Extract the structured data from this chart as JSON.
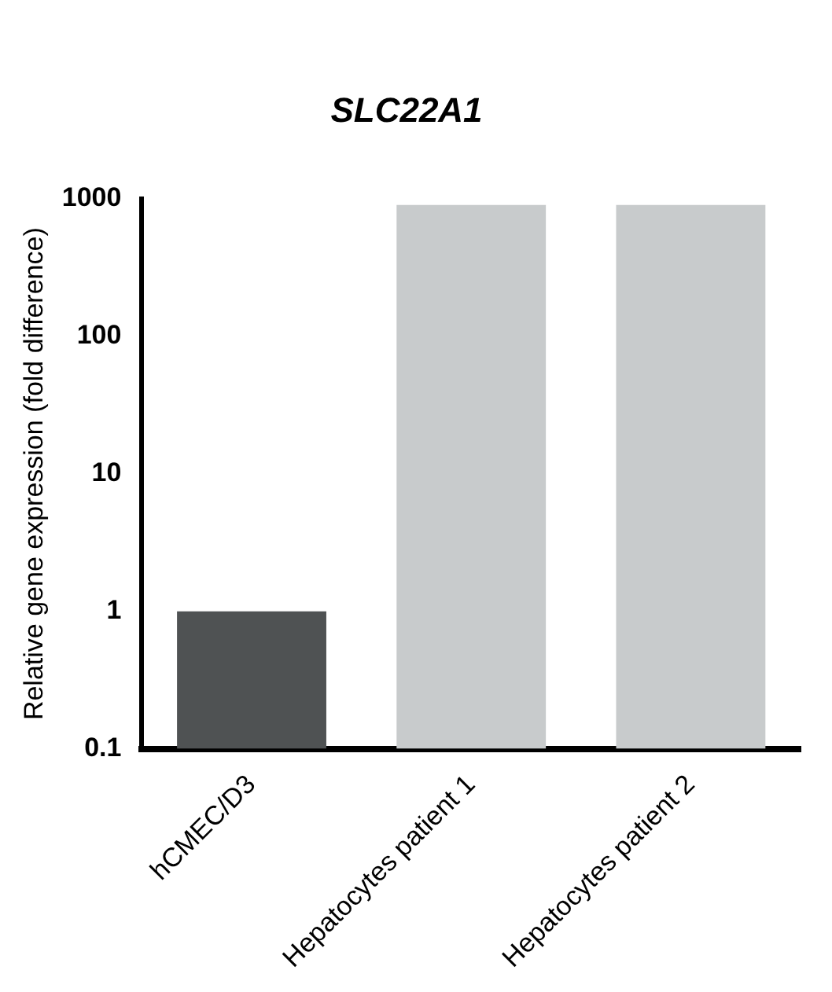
{
  "chart_data": {
    "type": "bar",
    "title": "SLC22A1",
    "ylabel": "Relative gene expression (fold difference)",
    "categories": [
      "hCMEC/D3",
      "Hepatocytes patient 1",
      "Hepatocytes patient 2"
    ],
    "values": [
      1,
      900,
      900
    ],
    "colors": [
      "#4f5253",
      "#c8cbcc",
      "#c8cbcc"
    ],
    "log": "y",
    "ylim": [
      0.1,
      1000
    ],
    "yticks": [
      0.1,
      1,
      10,
      100,
      1000
    ],
    "grid": false,
    "legend": false
  }
}
